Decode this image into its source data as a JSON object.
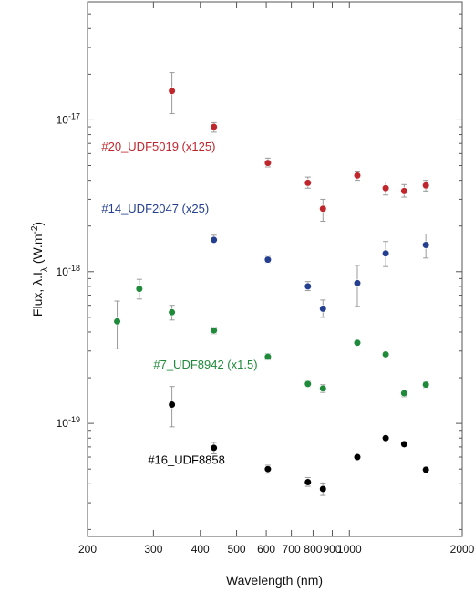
{
  "chart_data": {
    "type": "scatter",
    "xlabel": "Wavelength (nm)",
    "ylabel": "Flux, λ.I",
    "ylabel_sub": "λ",
    "ylabel_unit": " (W.m",
    "ylabel_unit_sup": "-2",
    "ylabel_unit_end": ")",
    "x_scale": "log",
    "y_scale": "log",
    "xlim": [
      200,
      2000
    ],
    "ylim": [
      1.8e-20,
      6e-17
    ],
    "x_tick_labels": [
      {
        "value": 200,
        "label": "200"
      },
      {
        "value": 300,
        "label": "300"
      },
      {
        "value": 400,
        "label": "400"
      },
      {
        "value": 500,
        "label": "500"
      },
      {
        "value": 600,
        "label": "600"
      },
      {
        "value": 700,
        "label": "700"
      },
      {
        "value": 800,
        "label": "800"
      },
      {
        "value": 900,
        "label": "900"
      },
      {
        "value": 1000,
        "label": "1000"
      },
      {
        "value": 2000,
        "label": "2000"
      }
    ],
    "y_tick_labels": [
      {
        "value": 1e-19,
        "base": "10",
        "exp": "-19"
      },
      {
        "value": 1e-18,
        "base": "10",
        "exp": "-18"
      },
      {
        "value": 1e-17,
        "base": "10",
        "exp": "-17"
      }
    ],
    "grid": false,
    "series": [
      {
        "name": "#20_UDF5019 (x125)",
        "color": "#c0272d",
        "points": [
          {
            "x": 336,
            "y": 1.55e-17,
            "lo": 1.1e-17,
            "hi": 2.05e-17
          },
          {
            "x": 435,
            "y": 9e-18,
            "lo": 8.3e-18,
            "hi": 9.6e-18
          },
          {
            "x": 606,
            "y": 5.2e-18,
            "lo": 4.9e-18,
            "hi": 5.6e-18
          },
          {
            "x": 775,
            "y": 3.85e-18,
            "lo": 3.55e-18,
            "hi": 4.2e-18
          },
          {
            "x": 850,
            "y": 2.6e-18,
            "lo": 2.15e-18,
            "hi": 3e-18
          },
          {
            "x": 1050,
            "y": 4.3e-18,
            "lo": 4e-18,
            "hi": 4.6e-18
          },
          {
            "x": 1250,
            "y": 3.55e-18,
            "lo": 3.2e-18,
            "hi": 3.9e-18
          },
          {
            "x": 1400,
            "y": 3.4e-18,
            "lo": 3.1e-18,
            "hi": 3.75e-18
          },
          {
            "x": 1600,
            "y": 3.7e-18,
            "lo": 3.4e-18,
            "hi": 4e-18
          }
        ]
      },
      {
        "name": "#14_UDF2047 (x25)",
        "color": "#243f8f",
        "points": [
          {
            "x": 435,
            "y": 1.62e-18,
            "lo": 1.52e-18,
            "hi": 1.74e-18
          },
          {
            "x": 606,
            "y": 1.2e-18,
            "lo": 1.15e-18,
            "hi": 1.26e-18
          },
          {
            "x": 775,
            "y": 8e-19,
            "lo": 7.5e-19,
            "hi": 8.6e-19
          },
          {
            "x": 850,
            "y": 5.7e-19,
            "lo": 5e-19,
            "hi": 6.5e-19
          },
          {
            "x": 1050,
            "y": 8.4e-19,
            "lo": 5.9e-19,
            "hi": 1.1e-18
          },
          {
            "x": 1250,
            "y": 1.32e-18,
            "lo": 1.08e-18,
            "hi": 1.58e-18
          },
          {
            "x": 1600,
            "y": 1.5e-18,
            "lo": 1.23e-18,
            "hi": 1.77e-18
          }
        ]
      },
      {
        "name": "#7_UDF8942 (x1.5)",
        "color": "#1f8a3a",
        "points": [
          {
            "x": 240,
            "y": 4.7e-19,
            "lo": 3.1e-19,
            "hi": 6.4e-19
          },
          {
            "x": 275,
            "y": 7.7e-19,
            "lo": 6.6e-19,
            "hi": 8.9e-19
          },
          {
            "x": 336,
            "y": 5.4e-19,
            "lo": 4.8e-19,
            "hi": 6e-19
          },
          {
            "x": 435,
            "y": 4.1e-19,
            "lo": 3.9e-19,
            "hi": 4.3e-19
          },
          {
            "x": 606,
            "y": 2.75e-19,
            "lo": 2.62e-19,
            "hi": 2.88e-19
          },
          {
            "x": 775,
            "y": 1.82e-19,
            "lo": 1.75e-19,
            "hi": 1.9e-19
          },
          {
            "x": 850,
            "y": 1.7e-19,
            "lo": 1.6e-19,
            "hi": 1.8e-19
          },
          {
            "x": 1050,
            "y": 3.4e-19,
            "lo": 3.28e-19,
            "hi": 3.52e-19
          },
          {
            "x": 1250,
            "y": 2.85e-19,
            "lo": 2.75e-19,
            "hi": 2.95e-19
          },
          {
            "x": 1400,
            "y": 1.58e-19,
            "lo": 1.5e-19,
            "hi": 1.66e-19
          },
          {
            "x": 1600,
            "y": 1.8e-19,
            "lo": 1.72e-19,
            "hi": 1.88e-19
          }
        ]
      },
      {
        "name": "#16_UDF8858",
        "color": "#000000",
        "points": [
          {
            "x": 336,
            "y": 1.33e-19,
            "lo": 9.5e-20,
            "hi": 1.75e-19
          },
          {
            "x": 435,
            "y": 6.9e-20,
            "lo": 6.3e-20,
            "hi": 7.5e-20
          },
          {
            "x": 606,
            "y": 5e-20,
            "lo": 4.7e-20,
            "hi": 5.3e-20
          },
          {
            "x": 775,
            "y": 4.1e-20,
            "lo": 3.85e-20,
            "hi": 4.4e-20
          },
          {
            "x": 850,
            "y": 3.7e-20,
            "lo": 3.35e-20,
            "hi": 4.05e-20
          },
          {
            "x": 1050,
            "y": 6e-20,
            "lo": 5.8e-20,
            "hi": 6.2e-20
          },
          {
            "x": 1250,
            "y": 8e-20,
            "lo": 7.75e-20,
            "hi": 8.25e-20
          },
          {
            "x": 1400,
            "y": 7.3e-20,
            "lo": 7.05e-20,
            "hi": 7.55e-20
          },
          {
            "x": 1600,
            "y": 4.95e-20,
            "lo": 4.75e-20,
            "hi": 5.15e-20
          }
        ]
      }
    ],
    "annotations": [
      {
        "text": "#20_UDF5019 (x125)",
        "color": "#c0272d",
        "x": 218,
        "y": 6.3e-18
      },
      {
        "text": "#14_UDF2047 (x25)",
        "color": "#243f8f",
        "x": 218,
        "y": 2.45e-18
      },
      {
        "text": "#7_UDF8942 (x1.5)",
        "color": "#1f8a3a",
        "x": 300,
        "y": 2.3e-19
      },
      {
        "text": "#16_UDF8858",
        "color": "#000000",
        "x": 290,
        "y": 5.4e-20
      }
    ]
  }
}
